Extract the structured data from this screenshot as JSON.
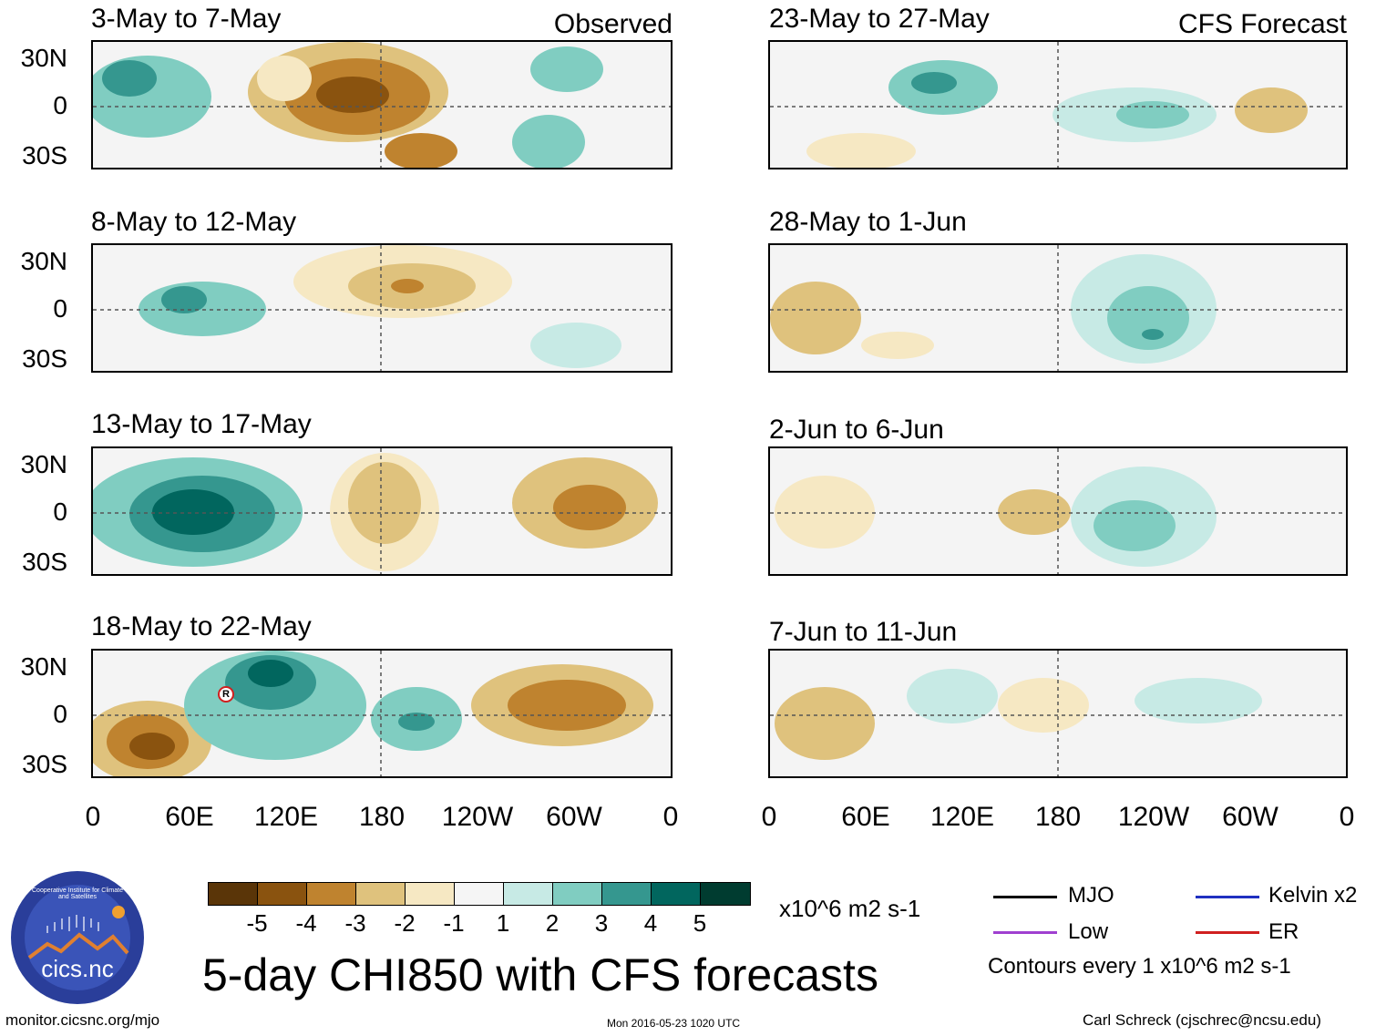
{
  "left_column_label": "Observed",
  "right_column_label": "CFS Forecast",
  "panels_left": [
    {
      "period": "3-May to 7-May"
    },
    {
      "period": "8-May to 12-May"
    },
    {
      "period": "13-May to 17-May"
    },
    {
      "period": "18-May to 22-May"
    }
  ],
  "panels_right": [
    {
      "period": "23-May to 27-May"
    },
    {
      "period": "28-May to 1-Jun"
    },
    {
      "period": "2-Jun to 6-Jun"
    },
    {
      "period": "7-Jun to 11-Jun"
    }
  ],
  "lat_labels": [
    "30N",
    "0",
    "30S"
  ],
  "lon_labels": [
    "0",
    "60E",
    "120E",
    "180",
    "120W",
    "60W",
    "0"
  ],
  "colorbar": {
    "colors": [
      "#5a3508",
      "#8a530f",
      "#bf832f",
      "#dfc27d",
      "#f6e8c3",
      "#f5f5f5",
      "#c7eae5",
      "#80cdc1",
      "#35978f",
      "#01665e",
      "#003c30"
    ],
    "labels": [
      "-5",
      "-4",
      "-3",
      "-2",
      "-1",
      "1",
      "2",
      "3",
      "4",
      "5"
    ],
    "units": "x10^6 m2 s-1"
  },
  "legend": {
    "mjo": "MJO",
    "kelvin": "Kelvin x2",
    "low": "Low",
    "er": "ER",
    "mjo_color": "#000000",
    "kelvin_color": "#2030c0",
    "low_color": "#a040d0",
    "er_color": "#d02020",
    "contours": "Contours every 1 x10^6 m2 s-1"
  },
  "main_title": "5-day CHI850 with CFS forecasts",
  "logo_text": "cics.nc",
  "logo_ring_text": "Cooperative Institute for Climate and Satellites",
  "footer_left": "monitor.cicsnc.org/mjo",
  "footer_center": "Mon 2016-05-23 1020 UTC",
  "footer_right": "Carl Schreck (cjschrec@ncsu.edu)",
  "storm_marker": "R"
}
